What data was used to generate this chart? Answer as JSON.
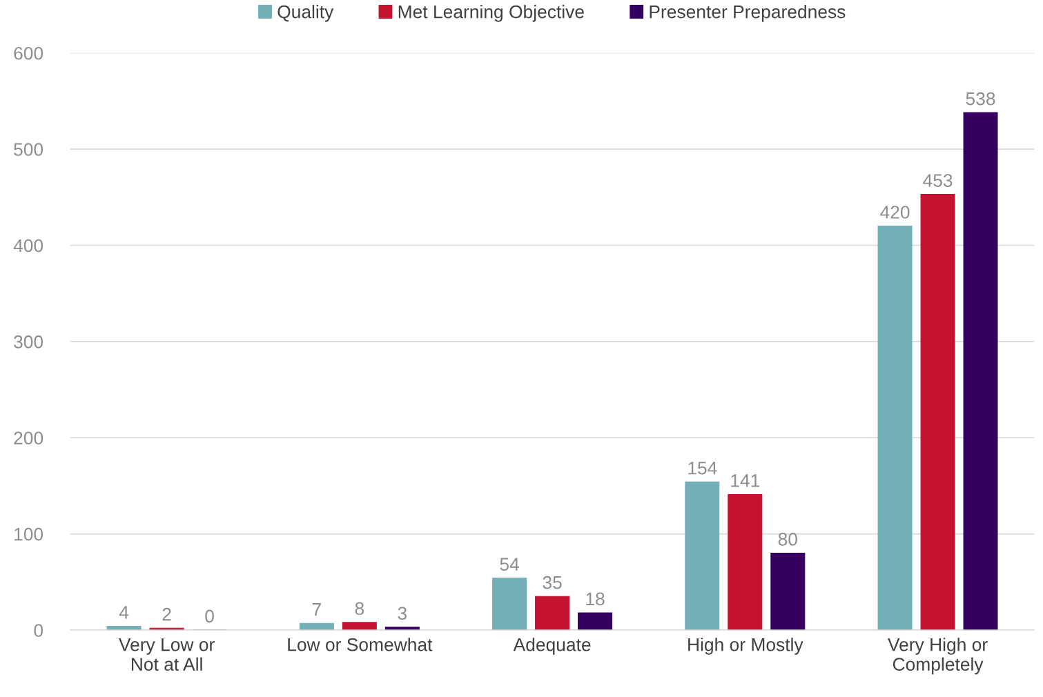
{
  "chart_data": {
    "type": "bar",
    "categories": [
      "Very Low or\nNot at All",
      "Low or Somewhat",
      "Adequate",
      "High or Mostly",
      "Very High or\nCompletely"
    ],
    "series": [
      {
        "name": "Quality",
        "color": "#72afb6",
        "values": [
          4,
          7,
          54,
          154,
          420
        ]
      },
      {
        "name": "Met Learning Objective",
        "color": "#c41230",
        "values": [
          2,
          8,
          35,
          141,
          453
        ]
      },
      {
        "name": "Presenter Preparedness",
        "color": "#35005f",
        "values": [
          0,
          3,
          18,
          80,
          538
        ]
      }
    ],
    "ylim": [
      0,
      600
    ],
    "yticks": [
      0,
      100,
      200,
      300,
      400,
      500,
      600
    ],
    "grid": "y",
    "legend": "top",
    "data_labels": true
  }
}
